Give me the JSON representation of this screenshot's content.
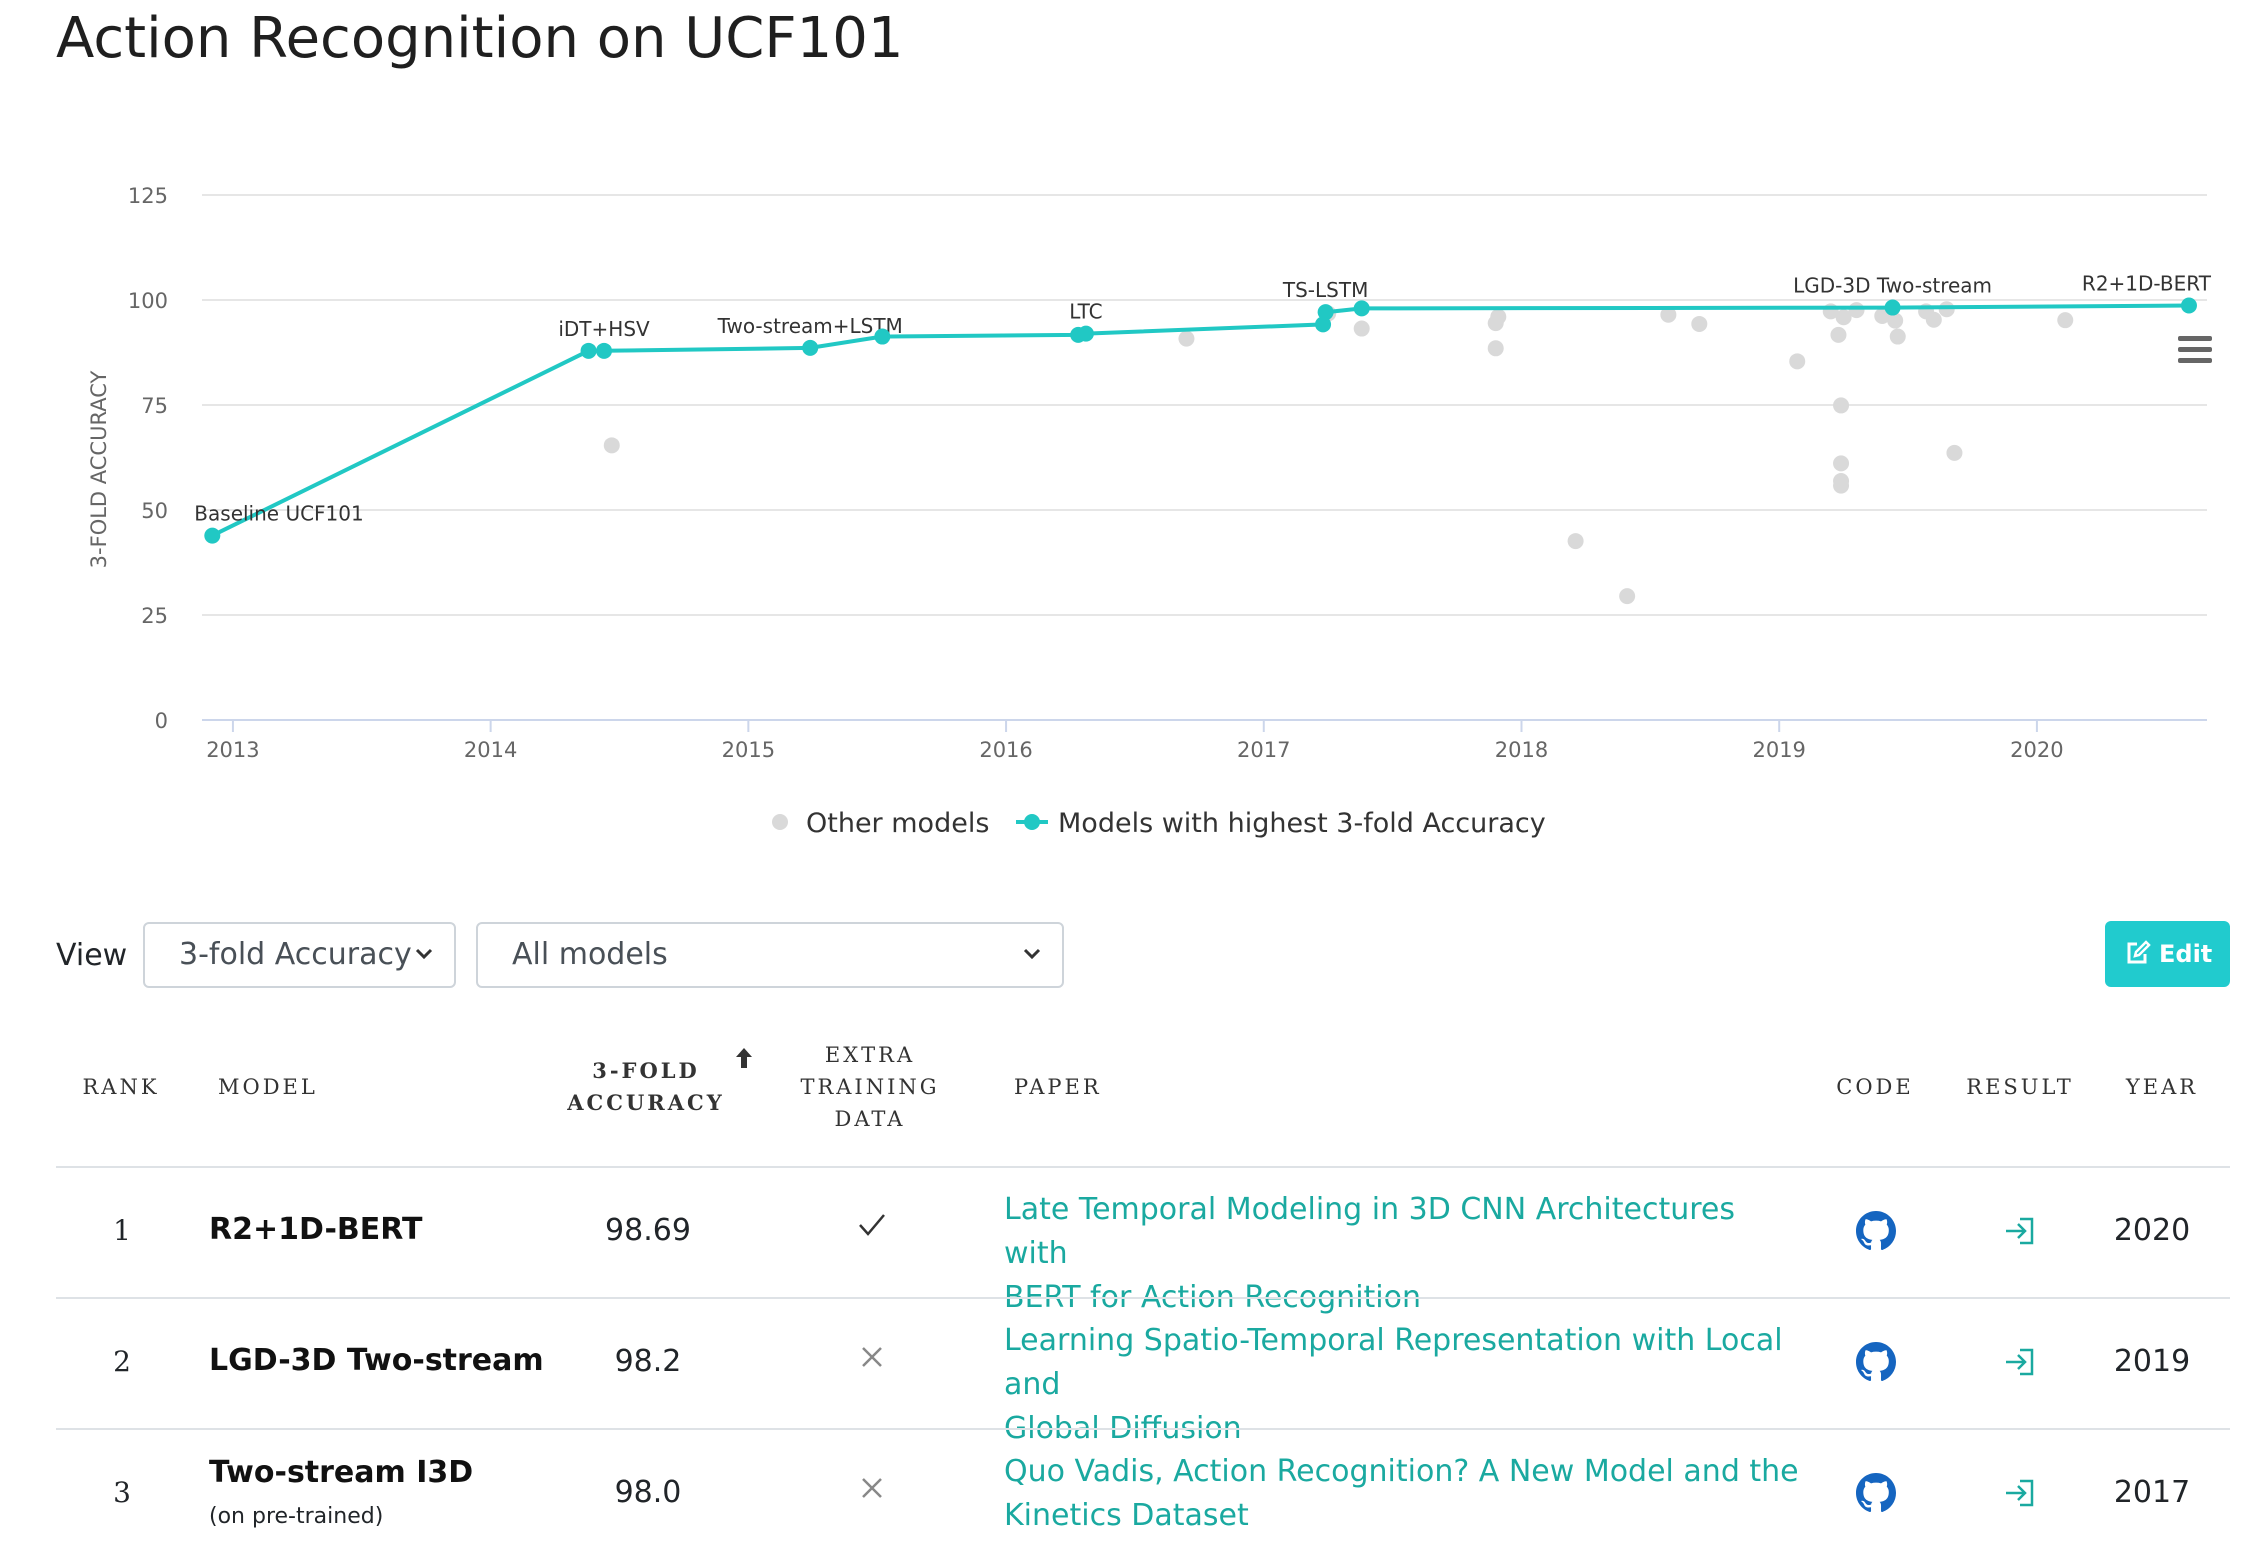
{
  "page": {
    "title": "Action Recognition on UCF101"
  },
  "chart_data": {
    "type": "scatter",
    "ylabel": "3-FOLD ACCURACY",
    "xlabel": "",
    "ylim": [
      0,
      125
    ],
    "yticks": [
      0,
      25,
      50,
      75,
      100,
      125
    ],
    "xlim": [
      2012.88,
      2020.66
    ],
    "xticks": [
      2013,
      2014,
      2015,
      2016,
      2017,
      2018,
      2019,
      2020
    ],
    "grid": true,
    "legend_position": "bottom-center",
    "colors": {
      "other": "#d9d9d9",
      "best": "#21c8c4"
    },
    "series": [
      {
        "name": "Other models",
        "points": [
          {
            "x": 2014.47,
            "y": 65.4
          },
          {
            "x": 2016.7,
            "y": 90.8
          },
          {
            "x": 2017.38,
            "y": 93.2
          },
          {
            "x": 2017.9,
            "y": 94.5
          },
          {
            "x": 2017.91,
            "y": 96.0
          },
          {
            "x": 2017.9,
            "y": 88.5
          },
          {
            "x": 2018.21,
            "y": 42.6
          },
          {
            "x": 2018.41,
            "y": 29.5
          },
          {
            "x": 2018.57,
            "y": 96.5
          },
          {
            "x": 2018.69,
            "y": 94.3
          },
          {
            "x": 2019.07,
            "y": 85.4
          },
          {
            "x": 2019.2,
            "y": 97.3
          },
          {
            "x": 2019.23,
            "y": 91.7
          },
          {
            "x": 2019.25,
            "y": 95.9
          },
          {
            "x": 2019.3,
            "y": 97.6
          },
          {
            "x": 2019.24,
            "y": 74.9
          },
          {
            "x": 2019.24,
            "y": 61.1
          },
          {
            "x": 2019.24,
            "y": 56.9
          },
          {
            "x": 2019.24,
            "y": 55.8
          },
          {
            "x": 2019.4,
            "y": 96.2
          },
          {
            "x": 2019.45,
            "y": 95.1
          },
          {
            "x": 2019.46,
            "y": 91.3
          },
          {
            "x": 2019.57,
            "y": 97.3
          },
          {
            "x": 2019.6,
            "y": 95.3
          },
          {
            "x": 2019.65,
            "y": 97.8
          },
          {
            "x": 2019.68,
            "y": 63.6
          },
          {
            "x": 2020.11,
            "y": 95.2
          },
          {
            "x": 2017.25,
            "y": 96.8
          }
        ]
      },
      {
        "name": "Models with highest 3-fold Accuracy",
        "points": [
          {
            "x": 2012.92,
            "y": 43.9,
            "label": "Baseline UCF101"
          },
          {
            "x": 2014.38,
            "y": 87.9
          },
          {
            "x": 2014.44,
            "y": 87.9,
            "label": "iDT+HSV"
          },
          {
            "x": 2015.24,
            "y": 88.6,
            "label": "Two-stream+LSTM"
          },
          {
            "x": 2015.52,
            "y": 91.3
          },
          {
            "x": 2016.28,
            "y": 91.7
          },
          {
            "x": 2016.31,
            "y": 92.0,
            "label": "LTC"
          },
          {
            "x": 2017.23,
            "y": 94.2
          },
          {
            "x": 2017.24,
            "y": 97.1,
            "label": "TS-LSTM"
          },
          {
            "x": 2017.38,
            "y": 98.0
          },
          {
            "x": 2019.44,
            "y": 98.2,
            "label": "LGD-3D Two-stream"
          },
          {
            "x": 2020.59,
            "y": 98.69,
            "label": "R2+1D-BERT"
          }
        ]
      }
    ]
  },
  "controls": {
    "view_label": "View",
    "metric_select": {
      "selected": "3-fold Accuracy"
    },
    "models_select": {
      "selected": "All models"
    },
    "edit_label": "Edit"
  },
  "table": {
    "headers": {
      "rank": "RANK",
      "model": "MODEL",
      "accuracy_line1": "3-FOLD",
      "accuracy_line2": "ACCURACY",
      "extra_line1": "EXTRA",
      "extra_line2": "TRAINING",
      "extra_line3": "DATA",
      "paper": "PAPER",
      "code": "CODE",
      "result": "RESULT",
      "year": "YEAR"
    },
    "rows": [
      {
        "rank": "1",
        "model": "R2+1D-BERT",
        "model_sub": "",
        "accuracy": "98.69",
        "extra_training_data": true,
        "paper_line1": "Late Temporal Modeling in 3D CNN Architectures with",
        "paper_line2": "BERT for Action Recognition",
        "code_icon": "github-icon",
        "result_icon": "enter-icon",
        "year": "2020"
      },
      {
        "rank": "2",
        "model": "LGD-3D Two-stream",
        "model_sub": "",
        "accuracy": "98.2",
        "extra_training_data": false,
        "paper_line1": "Learning Spatio-Temporal Representation with Local and",
        "paper_line2": "Global Diffusion",
        "code_icon": "github-icon",
        "result_icon": "enter-icon",
        "year": "2019"
      },
      {
        "rank": "3",
        "model": "Two-stream I3D",
        "model_sub": "(on pre-trained)",
        "accuracy": "98.0",
        "extra_training_data": false,
        "paper_line1": "Quo Vadis, Action Recognition? A New Model and the",
        "paper_line2": "Kinetics Dataset",
        "code_icon": "github-icon",
        "result_icon": "enter-icon",
        "year": "2017"
      }
    ]
  }
}
